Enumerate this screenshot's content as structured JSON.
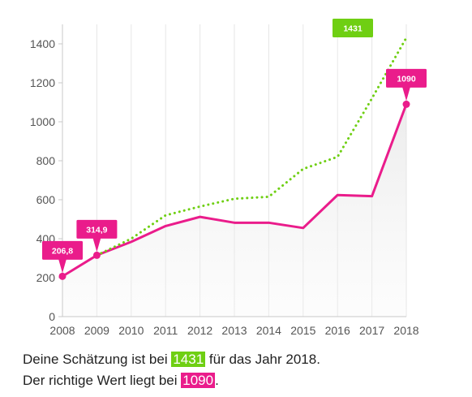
{
  "chart_data": {
    "type": "line",
    "x": [
      2008,
      2009,
      2010,
      2011,
      2012,
      2013,
      2014,
      2015,
      2016,
      2017,
      2018
    ],
    "xlim": [
      2008,
      2018
    ],
    "ylim": [
      0,
      1500
    ],
    "y_ticks": [
      0,
      200,
      400,
      600,
      800,
      1000,
      1200,
      1400
    ],
    "grid": "vertical lines at each year",
    "series": [
      {
        "role": "actual",
        "style": "solid",
        "color": "#ea1c8b",
        "x": [
          2008,
          2009,
          2010,
          2011,
          2012,
          2013,
          2014,
          2015,
          2016,
          2017,
          2018
        ],
        "values": [
          206.8,
          314.9,
          384,
          465,
          512,
          482,
          482,
          455,
          624,
          618,
          1090
        ]
      },
      {
        "role": "estimate",
        "style": "dotted",
        "color": "#6fcf13",
        "x": [
          2009,
          2010,
          2011,
          2012,
          2013,
          2014,
          2015,
          2016,
          2017,
          2018
        ],
        "values": [
          314.9,
          400,
          520,
          565,
          605,
          615,
          758,
          820,
          1120,
          1431
        ]
      }
    ],
    "labels": [
      {
        "x": 2008,
        "y": 206.8,
        "text": "206,8",
        "color": "#ea1c8b"
      },
      {
        "x": 2009,
        "y": 314.9,
        "text": "314,9",
        "color": "#ea1c8b"
      },
      {
        "x": 2018,
        "y": 1090,
        "text": "1090",
        "color": "#ea1c8b"
      },
      {
        "x": 2018,
        "y": 1431,
        "text": "1431",
        "color": "#6fcf13"
      }
    ]
  },
  "caption": {
    "line1_prefix": "Deine Schätzung ist bei ",
    "line1_value": "1431",
    "line1_suffix": " für das Jahr 2018.",
    "line2_prefix": "Der richtige Wert liegt bei ",
    "line2_value": "1090",
    "line2_suffix": "."
  }
}
